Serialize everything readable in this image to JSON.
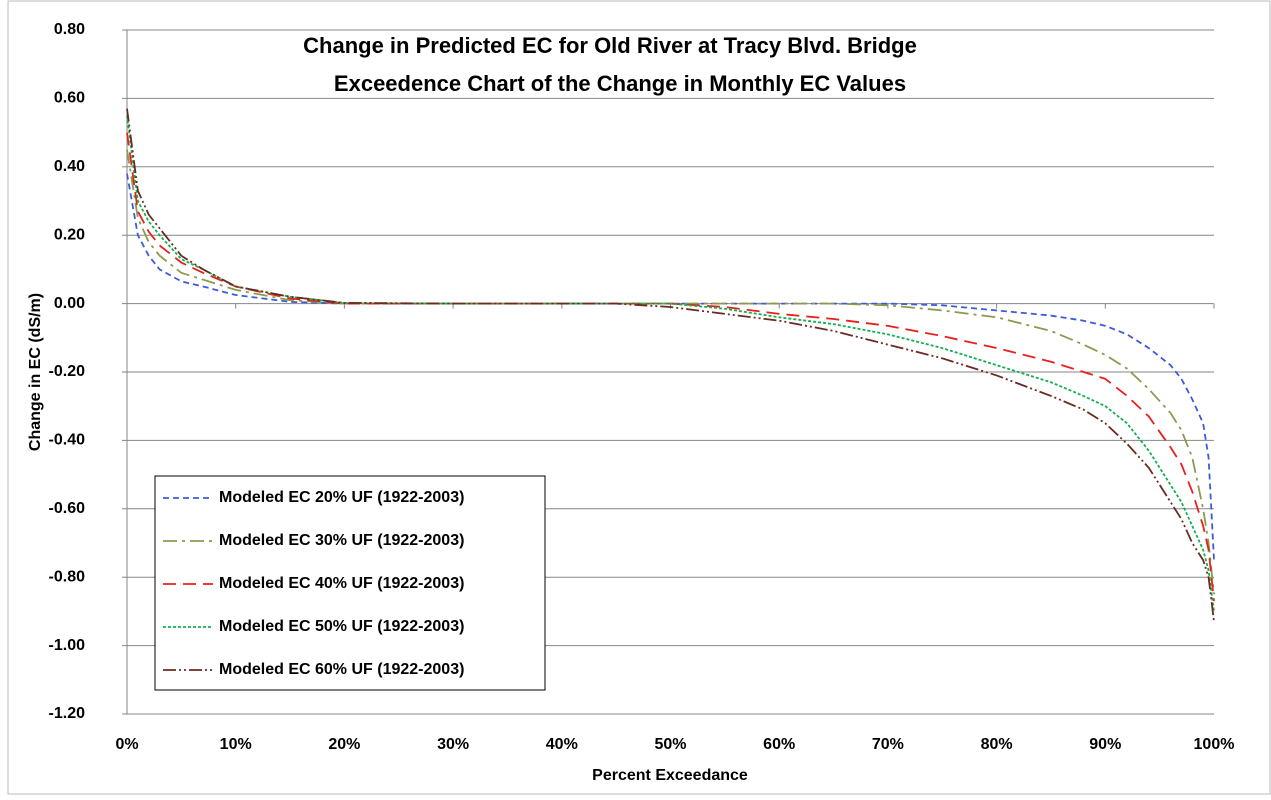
{
  "chart_data": {
    "type": "line",
    "title": "Change in Predicted EC for Old River at Tracy Blvd. Bridge",
    "subtitle": "Exceedence Chart of the Change in Monthly EC Values",
    "x_label": "Percent Exceedance",
    "y_label": "Change in EC (dS/m)",
    "x": [
      0,
      1,
      2,
      3,
      5,
      7,
      10,
      15,
      20,
      30,
      40,
      45,
      50,
      55,
      60,
      65,
      70,
      75,
      80,
      85,
      88,
      90,
      92,
      94,
      96,
      97,
      98,
      99,
      99.5,
      100
    ],
    "series": [
      {
        "name": "Modeled EC 20% UF (1922-2003)",
        "color": "#3b5bdb",
        "values": [
          0.38,
          0.2,
          0.14,
          0.1,
          0.065,
          0.05,
          0.025,
          0.005,
          0,
          0,
          0,
          0,
          0,
          0,
          0,
          0,
          0,
          -0.005,
          -0.02,
          -0.035,
          -0.05,
          -0.065,
          -0.09,
          -0.13,
          -0.18,
          -0.22,
          -0.28,
          -0.35,
          -0.45,
          -0.75
        ]
      },
      {
        "name": "Modeled EC 30% UF (1922-2003)",
        "color": "#8c9a4e",
        "values": [
          0.45,
          0.25,
          0.18,
          0.14,
          0.09,
          0.07,
          0.04,
          0.01,
          0,
          0,
          0,
          0,
          0,
          0,
          0,
          0,
          -0.005,
          -0.02,
          -0.04,
          -0.08,
          -0.12,
          -0.15,
          -0.19,
          -0.25,
          -0.32,
          -0.37,
          -0.45,
          -0.6,
          -0.7,
          -0.85
        ]
      },
      {
        "name": "Modeled EC 40% UF (1922-2003)",
        "color": "#e8201c",
        "values": [
          0.5,
          0.27,
          0.21,
          0.17,
          0.12,
          0.09,
          0.05,
          0.015,
          0,
          0,
          0,
          0,
          0,
          -0.01,
          -0.03,
          -0.045,
          -0.065,
          -0.095,
          -0.13,
          -0.17,
          -0.2,
          -0.22,
          -0.27,
          -0.33,
          -0.42,
          -0.47,
          -0.55,
          -0.65,
          -0.72,
          -0.87
        ]
      },
      {
        "name": "Modeled EC 50% UF (1922-2003)",
        "color": "#13b04f",
        "values": [
          0.55,
          0.3,
          0.24,
          0.2,
          0.13,
          0.1,
          0.05,
          0.02,
          0.002,
          0,
          0,
          0,
          0,
          -0.015,
          -0.04,
          -0.06,
          -0.09,
          -0.13,
          -0.18,
          -0.23,
          -0.27,
          -0.3,
          -0.35,
          -0.43,
          -0.53,
          -0.58,
          -0.65,
          -0.72,
          -0.78,
          -0.9
        ]
      },
      {
        "name": "Modeled EC 60% UF (1922-2003)",
        "color": "#6b2a22",
        "values": [
          0.57,
          0.33,
          0.26,
          0.22,
          0.14,
          0.1,
          0.05,
          0.02,
          0.002,
          0,
          0,
          0,
          -0.01,
          -0.03,
          -0.05,
          -0.08,
          -0.12,
          -0.16,
          -0.21,
          -0.27,
          -0.31,
          -0.35,
          -0.41,
          -0.48,
          -0.58,
          -0.63,
          -0.7,
          -0.75,
          -0.8,
          -0.93
        ]
      }
    ],
    "xlim": [
      0,
      100
    ],
    "xticks": [
      {
        "value": 0,
        "label": "0%"
      },
      {
        "value": 10,
        "label": "10%"
      },
      {
        "value": 20,
        "label": "20%"
      },
      {
        "value": 30,
        "label": "30%"
      },
      {
        "value": 40,
        "label": "40%"
      },
      {
        "value": 50,
        "label": "50%"
      },
      {
        "value": 60,
        "label": "60%"
      },
      {
        "value": 70,
        "label": "70%"
      },
      {
        "value": 80,
        "label": "80%"
      },
      {
        "value": 90,
        "label": "90%"
      },
      {
        "value": 100,
        "label": "100%"
      }
    ],
    "ylim": [
      -1.2,
      0.8
    ],
    "yticks": [
      {
        "value": 0.8,
        "label": "0.80"
      },
      {
        "value": 0.6,
        "label": "0.60"
      },
      {
        "value": 0.4,
        "label": "0.40"
      },
      {
        "value": 0.2,
        "label": "0.20"
      },
      {
        "value": 0,
        "label": "0.00"
      },
      {
        "value": -0.2,
        "label": "-0.20"
      },
      {
        "value": -0.4,
        "label": "-0.40"
      },
      {
        "value": -0.6,
        "label": "-0.60"
      },
      {
        "value": -0.8,
        "label": "-0.80"
      },
      {
        "value": -1,
        "label": "-1.00"
      },
      {
        "value": -1.2,
        "label": "-1.20"
      }
    ],
    "grid": true,
    "legend": "lower left"
  }
}
